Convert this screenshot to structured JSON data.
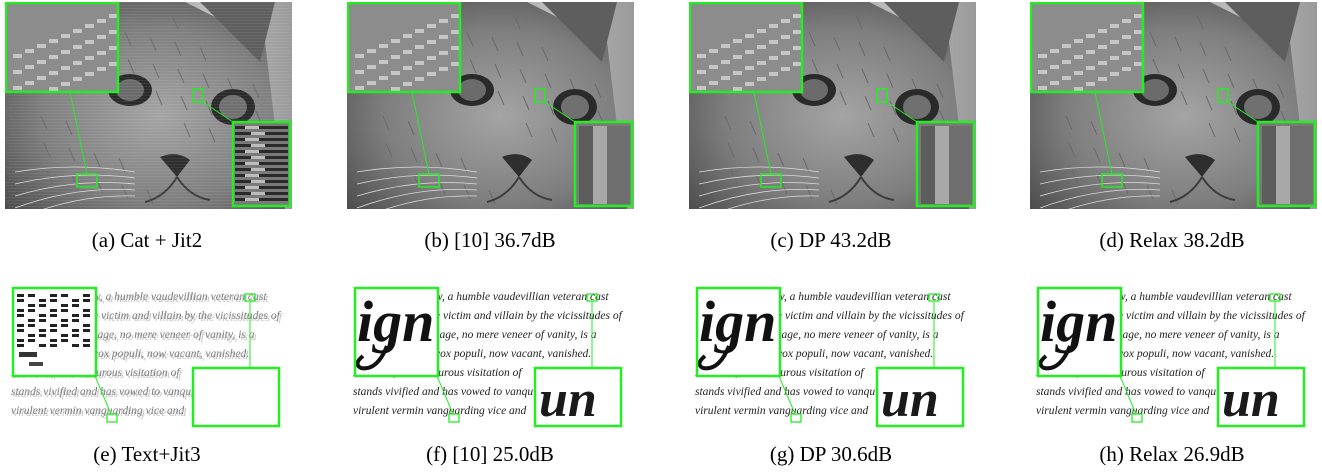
{
  "figure": {
    "row1": [
      {
        "id": "a",
        "caption": "(a) Cat + Jit2",
        "variant": "jitter"
      },
      {
        "id": "b",
        "caption": "(b) [10] 36.7dB",
        "variant": "restored"
      },
      {
        "id": "c",
        "caption": "(c) DP 43.2dB",
        "variant": "restored"
      },
      {
        "id": "d",
        "caption": "(d) Relax 38.2dB",
        "variant": "restored"
      }
    ],
    "row2": [
      {
        "id": "e",
        "caption": "(e) Text+Jit3",
        "variant": "jitter"
      },
      {
        "id": "f",
        "caption": "(f) [10] 25.0dB",
        "variant": "restored"
      },
      {
        "id": "g",
        "caption": "(g) DP 30.6dB",
        "variant": "restored"
      },
      {
        "id": "h",
        "caption": "(h) Relax 26.9dB",
        "variant": "restored"
      }
    ],
    "text_lines": [
      "w, a humble vaudevillian veteran cast",
      "e victim and villain by the vicissitudes of",
      "sage, no mere veneer of vanity, is a",
      "vox populi, now vacant, vanished.",
      "However, this valourous visitation of",
      "stands vivified and has vowed to vanqu",
      "virulent vermin vanguarding vice and"
    ],
    "zoom_inset_text": "ign",
    "zoom_inset_text2": "un"
  },
  "colors": {
    "zoom_border": "#22ee22",
    "cat_dark": "#3a3a3a",
    "cat_mid": "#8a8a8a",
    "cat_light": "#c8c8c8"
  }
}
